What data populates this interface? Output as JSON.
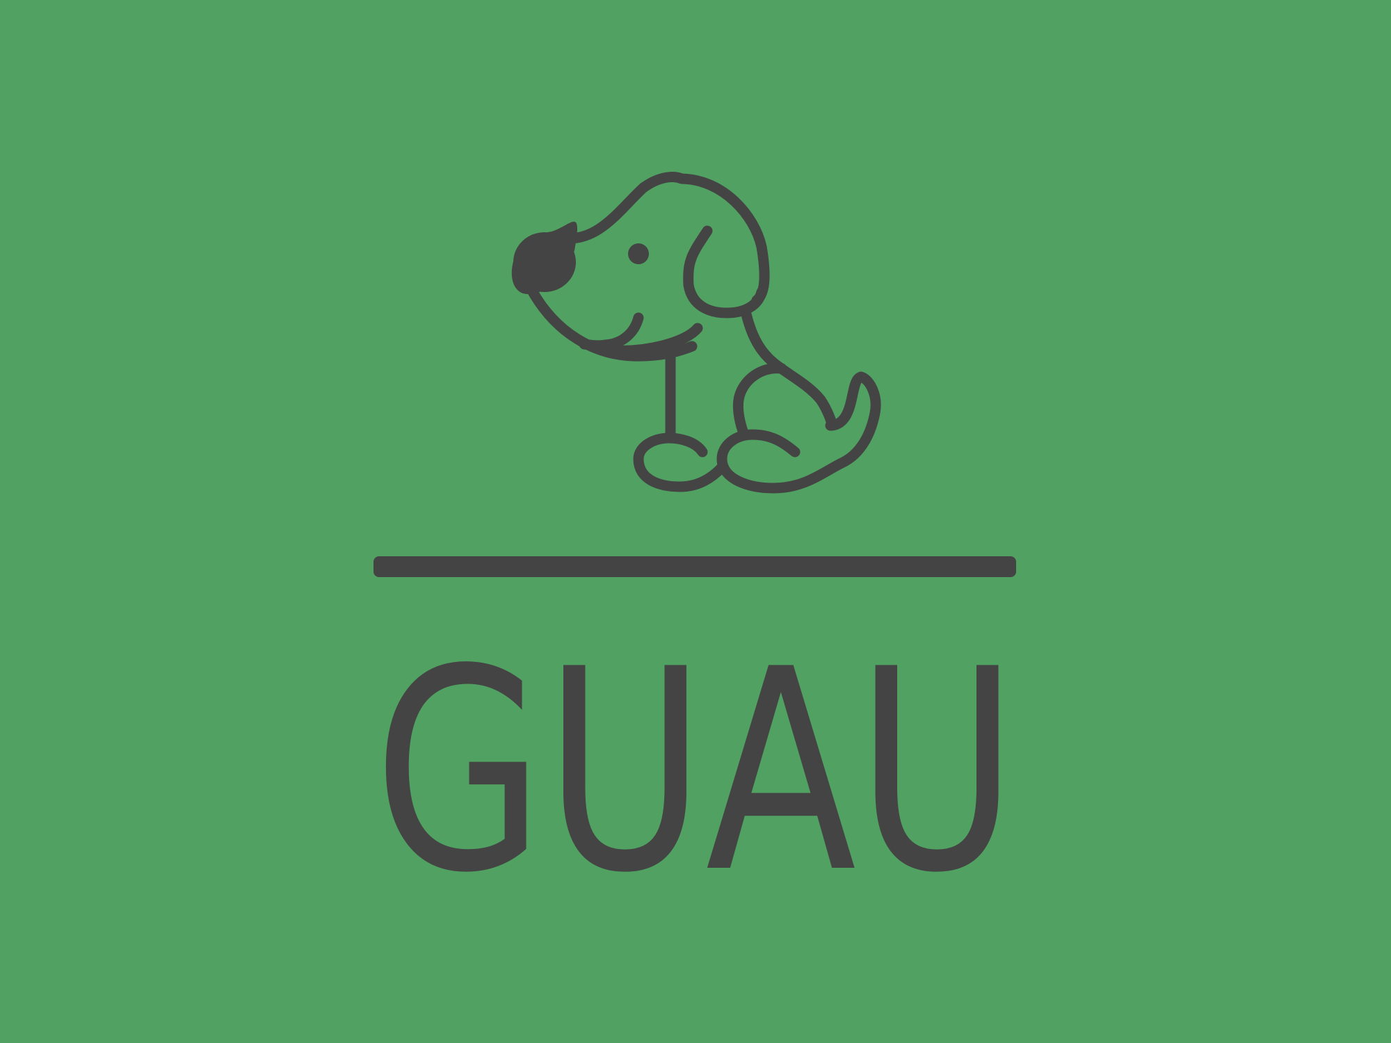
{
  "logo": {
    "wordmark": "GUAU"
  },
  "colors": {
    "background": "#51a262",
    "ink": "#444444"
  },
  "icons": {
    "mascot": "dog-icon",
    "divider": "horizontal-bar"
  }
}
